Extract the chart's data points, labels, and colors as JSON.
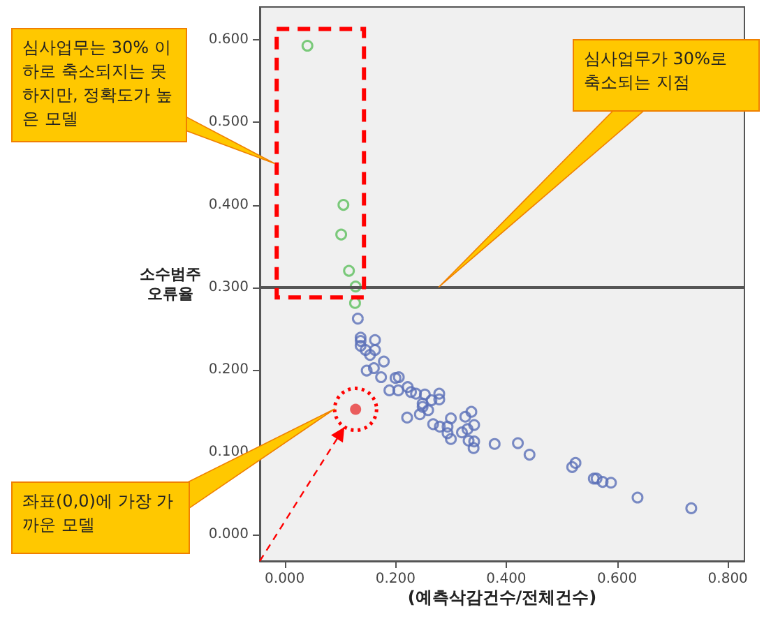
{
  "chart_data": {
    "type": "scatter",
    "xlabel": "(예측삭감건수/전체건수)",
    "ylabel": "소수범주\n오류율",
    "xlim": [
      -0.045,
      0.83
    ],
    "ylim": [
      -0.032,
      0.64
    ],
    "xticks": [
      {
        "value": 0,
        "label": "0.000"
      },
      {
        "value": 0.2,
        "label": "0.200"
      },
      {
        "value": 0.4,
        "label": "0.400"
      },
      {
        "value": 0.6,
        "label": "0.600"
      },
      {
        "value": 0.8,
        "label": "0.800"
      }
    ],
    "yticks": [
      {
        "value": 0,
        "label": "0.000"
      },
      {
        "value": 0.1,
        "label": "0.100"
      },
      {
        "value": 0.2,
        "label": "0.200"
      },
      {
        "value": 0.3,
        "label": "0.300"
      },
      {
        "value": 0.4,
        "label": "0.400"
      },
      {
        "value": 0.5,
        "label": "0.500"
      },
      {
        "value": 0.6,
        "label": "0.600"
      }
    ],
    "marker": "circle",
    "grid": false,
    "ref_lines": [
      {
        "axis": "y",
        "value": 0.3,
        "color": "#555555"
      }
    ],
    "annotations": [
      "심사업무는 30% 이하로 축소되지는 못하지만, 정확도가 높은 모델",
      "심사업무가 30%로 축소되는 지점",
      "좌표(0,0)에 가장 가까운 모델"
    ],
    "series": [
      {
        "color": "#5cbf5c",
        "x": [
          0.041,
          0.106,
          0.102,
          0.116,
          0.128,
          0.127
        ],
        "values": [
          0.593,
          0.4,
          0.364,
          0.32,
          0.301,
          0.281
        ]
      },
      {
        "color": "#5a6fb8",
        "x": [
          0.132,
          0.137,
          0.137,
          0.137,
          0.163,
          0.146,
          0.154,
          0.163,
          0.179,
          0.148,
          0.161,
          0.174,
          0.2,
          0.206,
          0.189,
          0.205,
          0.222,
          0.228,
          0.237,
          0.253,
          0.279,
          0.279,
          0.265,
          0.249,
          0.249,
          0.259,
          0.244,
          0.221,
          0.268,
          0.28,
          0.294,
          0.3,
          0.326,
          0.337,
          0.294,
          0.3,
          0.32,
          0.33,
          0.342,
          0.332,
          0.342,
          0.341,
          0.379,
          0.421,
          0.442,
          0.525,
          0.519,
          0.558,
          0.563,
          0.574,
          0.589,
          0.637,
          0.734
        ],
        "values": [
          0.262,
          0.239,
          0.235,
          0.229,
          0.236,
          0.224,
          0.218,
          0.224,
          0.21,
          0.199,
          0.202,
          0.191,
          0.19,
          0.191,
          0.175,
          0.175,
          0.179,
          0.173,
          0.171,
          0.17,
          0.171,
          0.164,
          0.163,
          0.159,
          0.155,
          0.151,
          0.146,
          0.142,
          0.134,
          0.131,
          0.131,
          0.141,
          0.143,
          0.149,
          0.123,
          0.116,
          0.124,
          0.128,
          0.133,
          0.114,
          0.113,
          0.105,
          0.11,
          0.111,
          0.097,
          0.087,
          0.082,
          0.068,
          0.068,
          0.064,
          0.063,
          0.045,
          0.032
        ]
      },
      {
        "color": "#e83838",
        "x": [
          0.128
        ],
        "values": [
          0.152
        ]
      }
    ]
  }
}
